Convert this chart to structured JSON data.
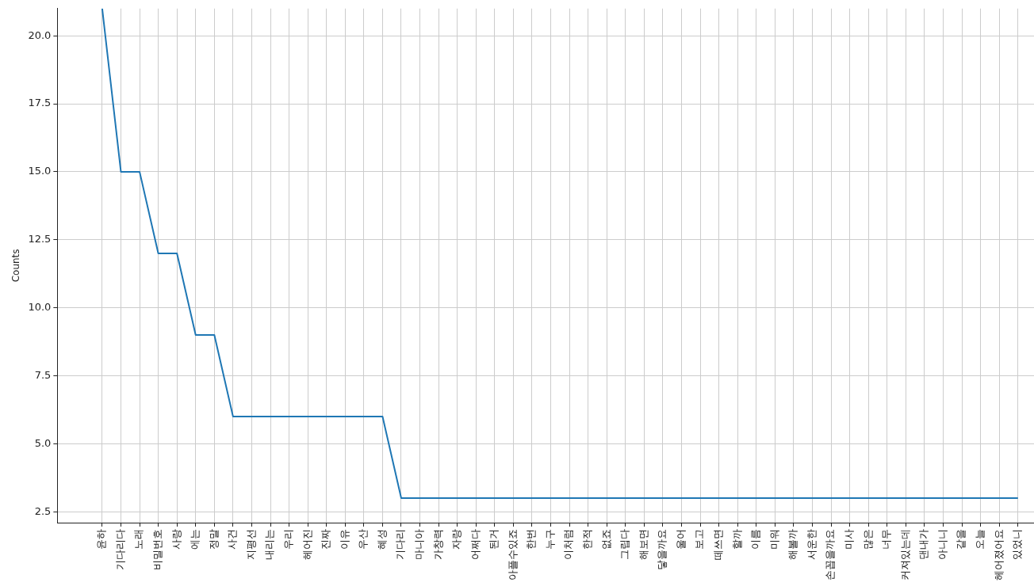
{
  "chart_data": {
    "type": "line",
    "ylabel": "Counts",
    "categories": [
      "윤하",
      "기다리다",
      "노래",
      "비밀번호",
      "사랑",
      "에는",
      "정말",
      "사건",
      "지평선",
      "내리는",
      "우리",
      "헤어진",
      "진짜",
      "이유",
      "우산",
      "혜성",
      "기다리",
      "마니아",
      "가창력",
      "자랑",
      "어쩌다",
      "된거",
      "아플수있죠",
      "한번",
      "누구",
      "이처럼",
      "한적",
      "없죠",
      "그립다",
      "해보면",
      "닿을까요",
      "울어",
      "보고",
      "떼쓰면",
      "할까",
      "이름",
      "미워",
      "해볼까",
      "서운한",
      "손꼽을까요",
      "미사",
      "많은",
      "너무",
      "커져있는데",
      "댄내가",
      "아니니",
      "같을",
      "오늘",
      "헤어졌어요",
      "있었니"
    ],
    "series": [
      {
        "color": "#1f77b4",
        "values": [
          21,
          15,
          15,
          12,
          12,
          9,
          9,
          6,
          6,
          6,
          6,
          6,
          6,
          6,
          6,
          6,
          3,
          3,
          3,
          3,
          3,
          3,
          3,
          3,
          3,
          3,
          3,
          3,
          3,
          3,
          3,
          3,
          3,
          3,
          3,
          3,
          3,
          3,
          3,
          3,
          3,
          3,
          3,
          3,
          3,
          3,
          3,
          3,
          3,
          3
        ]
      }
    ],
    "ylim": [
      2.1,
      21
    ],
    "yticks": [
      {
        "value": 2.5,
        "label": "2.5"
      },
      {
        "value": 5,
        "label": "5.0"
      },
      {
        "value": 7.5,
        "label": "7.5"
      },
      {
        "value": 10,
        "label": "10.0"
      },
      {
        "value": 12.5,
        "label": "12.5"
      },
      {
        "value": 15,
        "label": "15.0"
      },
      {
        "value": 17.5,
        "label": "17.5"
      },
      {
        "value": 20,
        "label": "20.0"
      }
    ],
    "grid": true,
    "marker": "none",
    "line_style": "solid"
  }
}
